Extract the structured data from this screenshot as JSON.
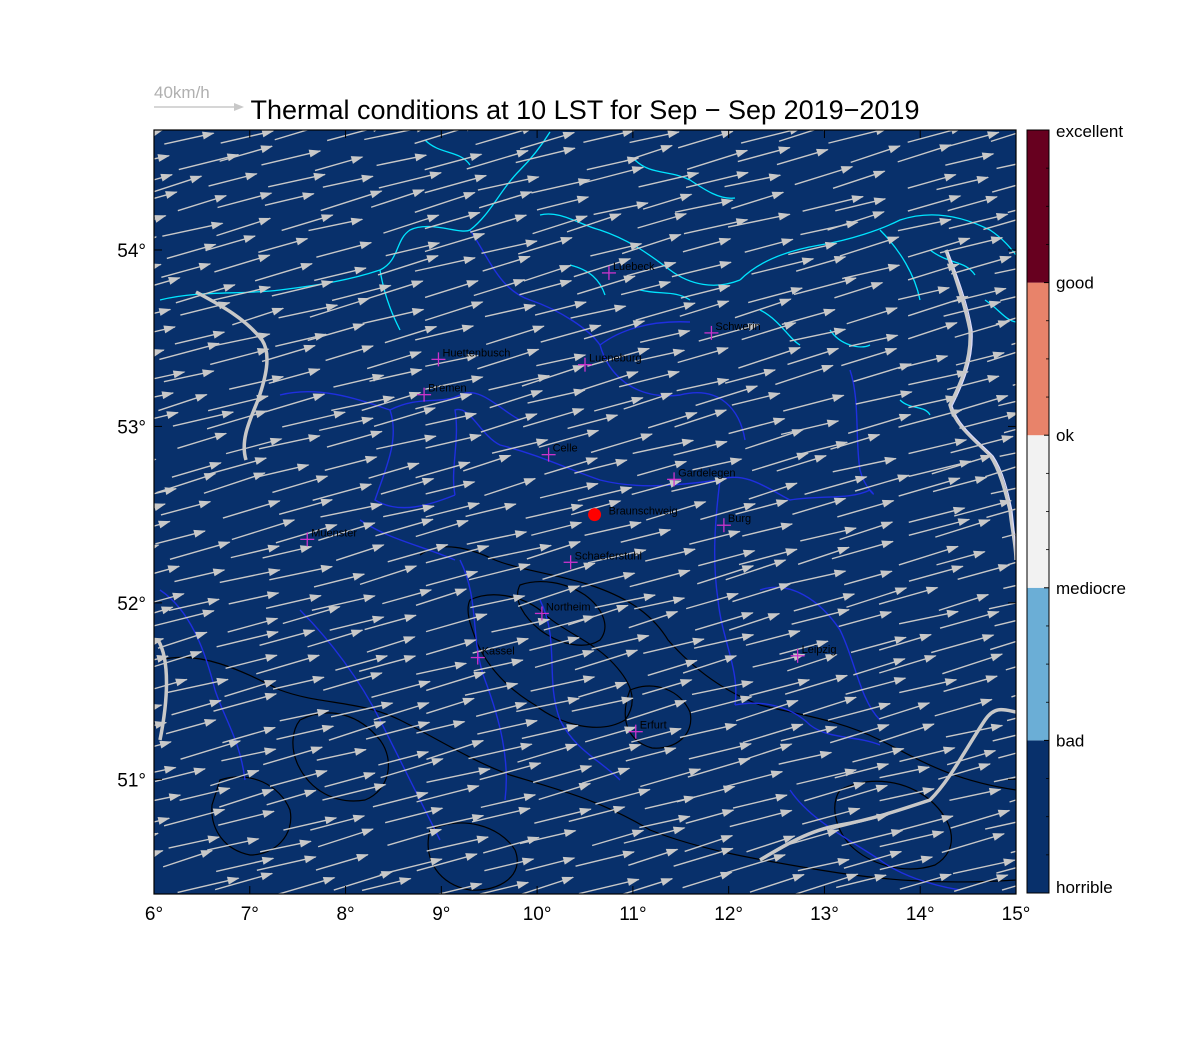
{
  "title": "Thermal conditions at 10 LST for Sep − Sep  2019−2019",
  "wind_scale": {
    "label": "40km/h",
    "speed_kmh": 40
  },
  "colors": {
    "map_background": "#08306b",
    "wind_arrow": "#c8c8c8",
    "coastline": "#00e5ff",
    "borders": "#1f2fe0",
    "terrain_contour": "#000000",
    "station_marker": "#cc33cc",
    "reference_point": "#ff0000",
    "national_border": "#c8c8c8"
  },
  "map_extent": {
    "lon": [
      6,
      15
    ],
    "lat": [
      50.35,
      54.68
    ]
  },
  "x_axis": {
    "ticks": [
      6,
      7,
      8,
      9,
      10,
      11,
      12,
      13,
      14,
      15
    ],
    "tick_labels": [
      "6°",
      "7°",
      "8°",
      "9°",
      "10°",
      "11°",
      "12°",
      "13°",
      "14°",
      "15°"
    ]
  },
  "y_axis": {
    "ticks": [
      51,
      52,
      53,
      54
    ],
    "tick_labels": [
      "51°",
      "52°",
      "53°",
      "54°"
    ]
  },
  "colorbar": {
    "labels": [
      "excellent",
      "good",
      "ok",
      "mediocre",
      "bad",
      "horrible"
    ],
    "bands": [
      {
        "from": "horrible",
        "to": "bad",
        "color": "#08306b"
      },
      {
        "from": "bad",
        "to": "mediocre",
        "color": "#6baed6"
      },
      {
        "from": "mediocre",
        "to": "ok",
        "color": "#f2f2f2"
      },
      {
        "from": "ok",
        "to": "good",
        "color": "#e8836a"
      },
      {
        "from": "good",
        "to": "excellent",
        "color": "#67001f"
      }
    ]
  },
  "reference_point": {
    "name": "Braunschweig",
    "lon": 10.6,
    "lat": 52.5
  },
  "stations": [
    {
      "name": "Luebeck",
      "lon": 10.75,
      "lat": 53.87
    },
    {
      "name": "Schwerin",
      "lon": 11.82,
      "lat": 53.53
    },
    {
      "name": "Huettenbusch",
      "lon": 8.97,
      "lat": 53.38
    },
    {
      "name": "Lueneburg",
      "lon": 10.5,
      "lat": 53.35
    },
    {
      "name": "Bremen",
      "lon": 8.82,
      "lat": 53.18
    },
    {
      "name": "Celle",
      "lon": 10.12,
      "lat": 52.84
    },
    {
      "name": "Gardelegen",
      "lon": 11.43,
      "lat": 52.7
    },
    {
      "name": "Burg",
      "lon": 11.95,
      "lat": 52.44
    },
    {
      "name": "Muenster",
      "lon": 7.6,
      "lat": 52.36
    },
    {
      "name": "Schaeferstuhl",
      "lon": 10.35,
      "lat": 52.23
    },
    {
      "name": "Northeim",
      "lon": 10.05,
      "lat": 51.94
    },
    {
      "name": "Kassel",
      "lon": 9.38,
      "lat": 51.69
    },
    {
      "name": "Leipzig",
      "lon": 12.72,
      "lat": 51.7
    },
    {
      "name": "Erfurt",
      "lon": 11.03,
      "lat": 51.27
    }
  ],
  "wind_field": {
    "direction_to_deg": 75,
    "speed_kmh_min": 30,
    "speed_kmh_max": 40
  }
}
